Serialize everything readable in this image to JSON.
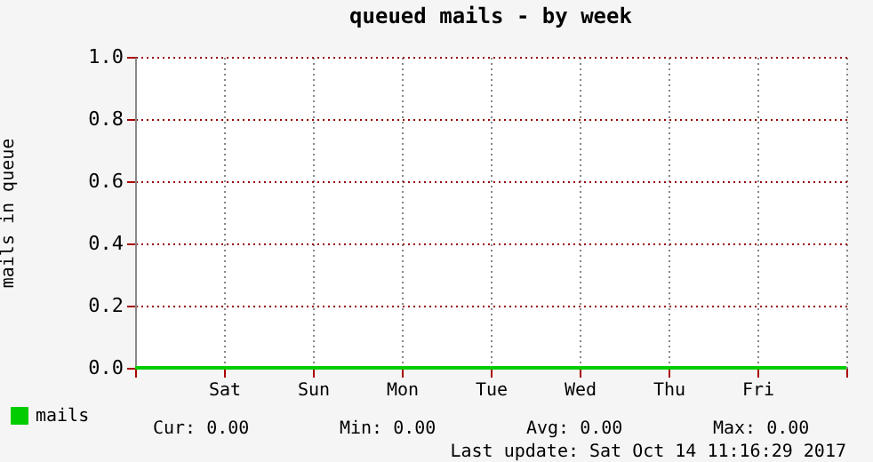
{
  "chart_data": {
    "type": "line",
    "title": "queued mails - by week",
    "ylabel": "mails in queue",
    "categories": [
      null,
      "Sat",
      "Sun",
      "Mon",
      "Tue",
      "Wed",
      "Thu",
      "Fri",
      null
    ],
    "series": [
      {
        "name": "mails",
        "color": "#00cc00",
        "values": [
          0,
          0,
          0,
          0,
          0,
          0,
          0,
          0,
          0
        ]
      }
    ],
    "ylim": [
      0,
      1
    ],
    "yticks": [
      {
        "value": 0,
        "label": "0.0"
      },
      {
        "value": 0.2,
        "label": "0.2"
      },
      {
        "value": 0.4,
        "label": "0.4"
      },
      {
        "value": 0.6,
        "label": "0.6"
      },
      {
        "value": 0.8,
        "label": "0.8"
      },
      {
        "value": 1,
        "label": "1.0"
      }
    ],
    "grid": true,
    "legend": "bottom left",
    "annotations": [
      "Cur:       0.00",
      "Min:       0.00",
      "Avg:       0.00",
      "Max:       0.00",
      "Last update: Sat Oct 14 11:16:29 2017"
    ]
  }
}
